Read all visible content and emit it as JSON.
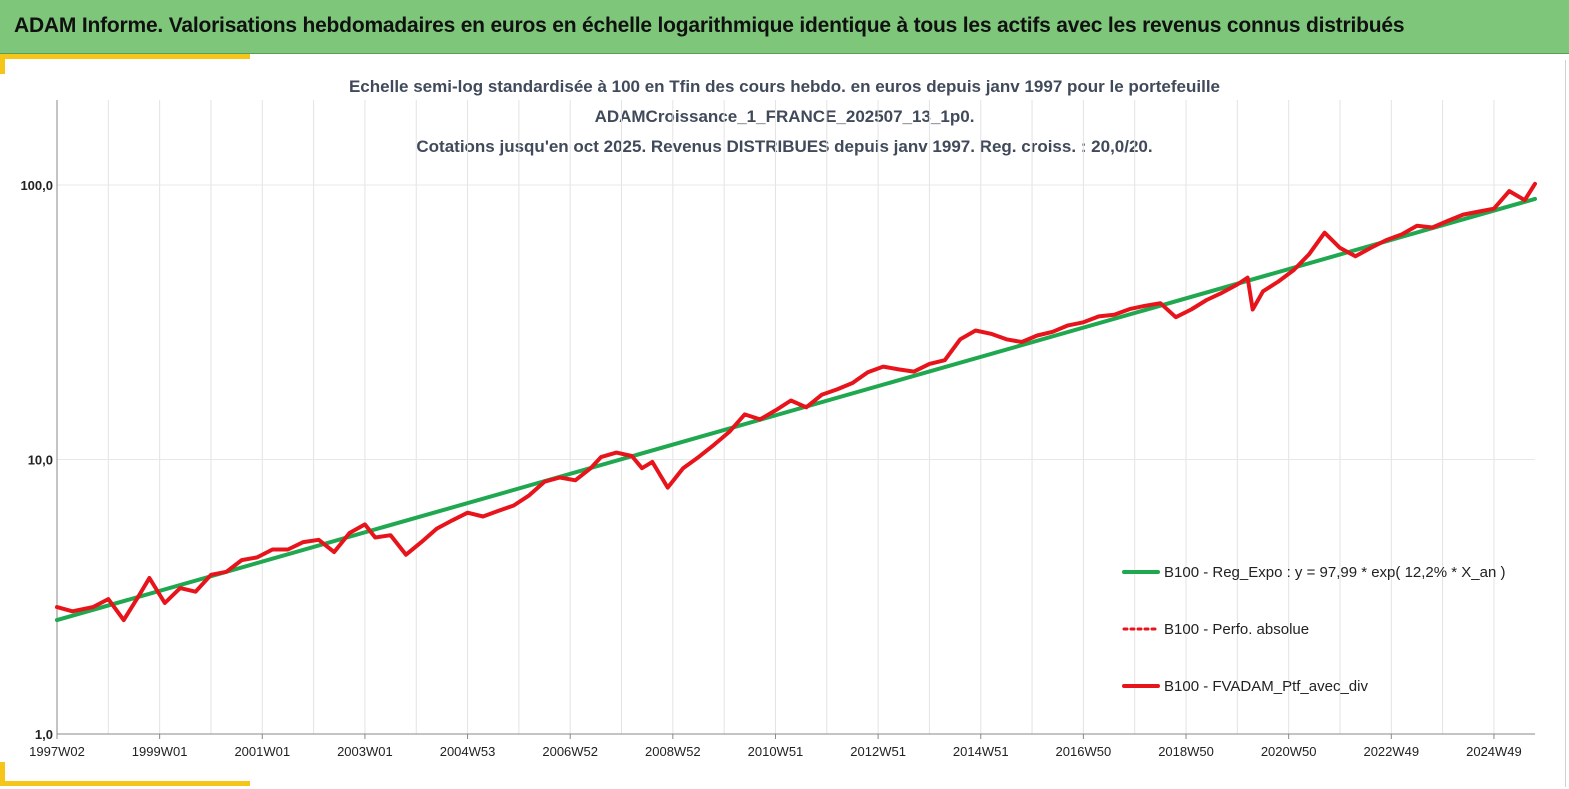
{
  "header": {
    "title": "ADAM Informe. Valorisations hebdomadaires en euros en échelle logarithmique identique à tous les actifs avec les revenus connus distribués"
  },
  "chart_data": {
    "type": "line",
    "title_lines": [
      "Echelle semi-log standardisée à 100 en Tfin des cours hebdo.  en euros depuis janv 1997 pour le portefeuille",
      "ADAMCroissance_1_FRANCE_202507_13_1p0.",
      "Cotations  jusqu'en oct 2025. Revenus DISTRIBUES depuis janv 1997. Reg. croiss.  : 20,0/20."
    ],
    "y_scale": "log",
    "ylim": [
      1,
      100
    ],
    "y_ticks": [
      "1,0",
      "10,0",
      "100,0"
    ],
    "y_tick_values": [
      1,
      10,
      100
    ],
    "x_range_years": [
      1997.0,
      2025.8
    ],
    "x_ticks": [
      {
        "label": "1997W02",
        "year": 1997.0
      },
      {
        "label": "1999W01",
        "year": 1999.0
      },
      {
        "label": "2001W01",
        "year": 2001.0
      },
      {
        "label": "2003W01",
        "year": 2003.0
      },
      {
        "label": "2004W53",
        "year": 2005.0
      },
      {
        "label": "2006W52",
        "year": 2007.0
      },
      {
        "label": "2008W52",
        "year": 2009.0
      },
      {
        "label": "2010W51",
        "year": 2011.0
      },
      {
        "label": "2012W51",
        "year": 2013.0
      },
      {
        "label": "2014W51",
        "year": 2015.0
      },
      {
        "label": "2016W50",
        "year": 2017.0
      },
      {
        "label": "2018W50",
        "year": 2019.0
      },
      {
        "label": "2020W50",
        "year": 2021.0
      },
      {
        "label": "2022W49",
        "year": 2023.0
      },
      {
        "label": "2024W49",
        "year": 2025.0
      }
    ],
    "grid": "vertical",
    "legend_position": "right",
    "series": [
      {
        "name": "B100 - Reg_Expo : y = 97,99 * exp( 12,2% *  X_an )",
        "color": "#1fa84f",
        "style": "solid",
        "x": [
          1997.0,
          2025.8
        ],
        "y": [
          2.6,
          89
        ]
      },
      {
        "name": "B100 - Perfo. absolue",
        "color": "#e8141b",
        "style": "dotted",
        "x": [],
        "y": []
      },
      {
        "name": "B100 - FVADAM_Ptf_avec_div",
        "color": "#e8141b",
        "style": "solid",
        "x": [
          1997.0,
          1997.3,
          1997.7,
          1998.0,
          1998.3,
          1998.6,
          1998.8,
          1999.1,
          1999.4,
          1999.7,
          2000.0,
          2000.3,
          2000.6,
          2000.9,
          2001.2,
          2001.5,
          2001.8,
          2002.1,
          2002.4,
          2002.7,
          2003.0,
          2003.2,
          2003.5,
          2003.8,
          2004.1,
          2004.4,
          2004.7,
          2005.0,
          2005.3,
          2005.6,
          2005.9,
          2006.2,
          2006.5,
          2006.8,
          2007.1,
          2007.4,
          2007.6,
          2007.9,
          2008.2,
          2008.4,
          2008.6,
          2008.9,
          2009.2,
          2009.5,
          2009.8,
          2010.1,
          2010.4,
          2010.7,
          2011.0,
          2011.3,
          2011.6,
          2011.9,
          2012.2,
          2012.5,
          2012.8,
          2013.1,
          2013.4,
          2013.7,
          2014.0,
          2014.3,
          2014.6,
          2014.9,
          2015.2,
          2015.5,
          2015.8,
          2016.1,
          2016.4,
          2016.7,
          2017.0,
          2017.3,
          2017.6,
          2017.9,
          2018.2,
          2018.5,
          2018.8,
          2019.1,
          2019.4,
          2019.7,
          2020.0,
          2020.2,
          2020.3,
          2020.5,
          2020.8,
          2021.1,
          2021.4,
          2021.7,
          2022.0,
          2022.3,
          2022.6,
          2022.9,
          2023.2,
          2023.5,
          2023.8,
          2024.1,
          2024.4,
          2024.7,
          2025.0,
          2025.3,
          2025.6,
          2025.8
        ],
        "y": [
          2.9,
          2.8,
          2.9,
          3.1,
          2.6,
          3.2,
          3.7,
          3.0,
          3.4,
          3.3,
          3.8,
          3.9,
          4.3,
          4.4,
          4.7,
          4.7,
          5.0,
          5.1,
          4.6,
          5.4,
          5.8,
          5.2,
          5.3,
          4.5,
          5.0,
          5.6,
          6.0,
          6.4,
          6.2,
          6.5,
          6.8,
          7.4,
          8.3,
          8.6,
          8.4,
          9.3,
          10.2,
          10.6,
          10.3,
          9.3,
          9.8,
          7.9,
          9.3,
          10.2,
          11.3,
          12.6,
          14.6,
          14.0,
          15.1,
          16.4,
          15.5,
          17.2,
          18.0,
          19.0,
          20.8,
          21.8,
          21.3,
          20.9,
          22.3,
          23.0,
          27.4,
          29.5,
          28.7,
          27.4,
          26.8,
          28.3,
          29.2,
          30.8,
          31.6,
          33.2,
          33.7,
          35.3,
          36.3,
          37.1,
          33.0,
          35.2,
          38.1,
          40.5,
          43.4,
          46.0,
          35.2,
          41.0,
          44.5,
          49.0,
          56.0,
          67.0,
          59.0,
          55.0,
          59.0,
          63.0,
          66.0,
          71.0,
          70.0,
          74.0,
          78.0,
          80.0,
          82.0,
          95.0,
          88.0,
          101.0
        ]
      }
    ]
  }
}
